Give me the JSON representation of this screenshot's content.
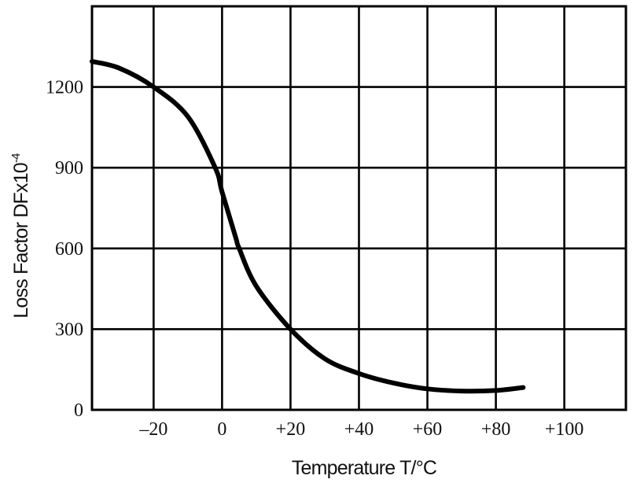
{
  "chart_data": {
    "type": "line",
    "title": "",
    "xlabel": "Temperature T/°C",
    "ylabel": "Loss Factor DFx10",
    "ylabel_superscript": "-4",
    "x_ticks": [
      -20,
      0,
      20,
      40,
      60,
      80,
      100
    ],
    "x_tick_labels": [
      "–20",
      "0",
      "+20",
      "+40",
      "+60",
      "+80",
      "+100"
    ],
    "y_ticks": [
      0,
      300,
      600,
      900,
      1200
    ],
    "y_tick_labels": [
      "0",
      "300",
      "600",
      "900",
      "1200"
    ],
    "xlim": [
      -38,
      118
    ],
    "ylim": [
      0,
      1500
    ],
    "grid": true,
    "legend": null,
    "series": [
      {
        "name": "Loss Factor",
        "color": "#000000",
        "x": [
          -38,
          -30,
          -20,
          -10,
          -2,
          0,
          4,
          5,
          10,
          20,
          30,
          40,
          50,
          60,
          70,
          80,
          88
        ],
        "y": [
          1295,
          1270,
          1200,
          1090,
          900,
          810,
          640,
          600,
          460,
          300,
          190,
          135,
          100,
          78,
          70,
          72,
          83
        ]
      }
    ]
  },
  "colors": {
    "background": "#ffffff",
    "grid": "#000000",
    "line": "#000000",
    "text": "#111111"
  }
}
